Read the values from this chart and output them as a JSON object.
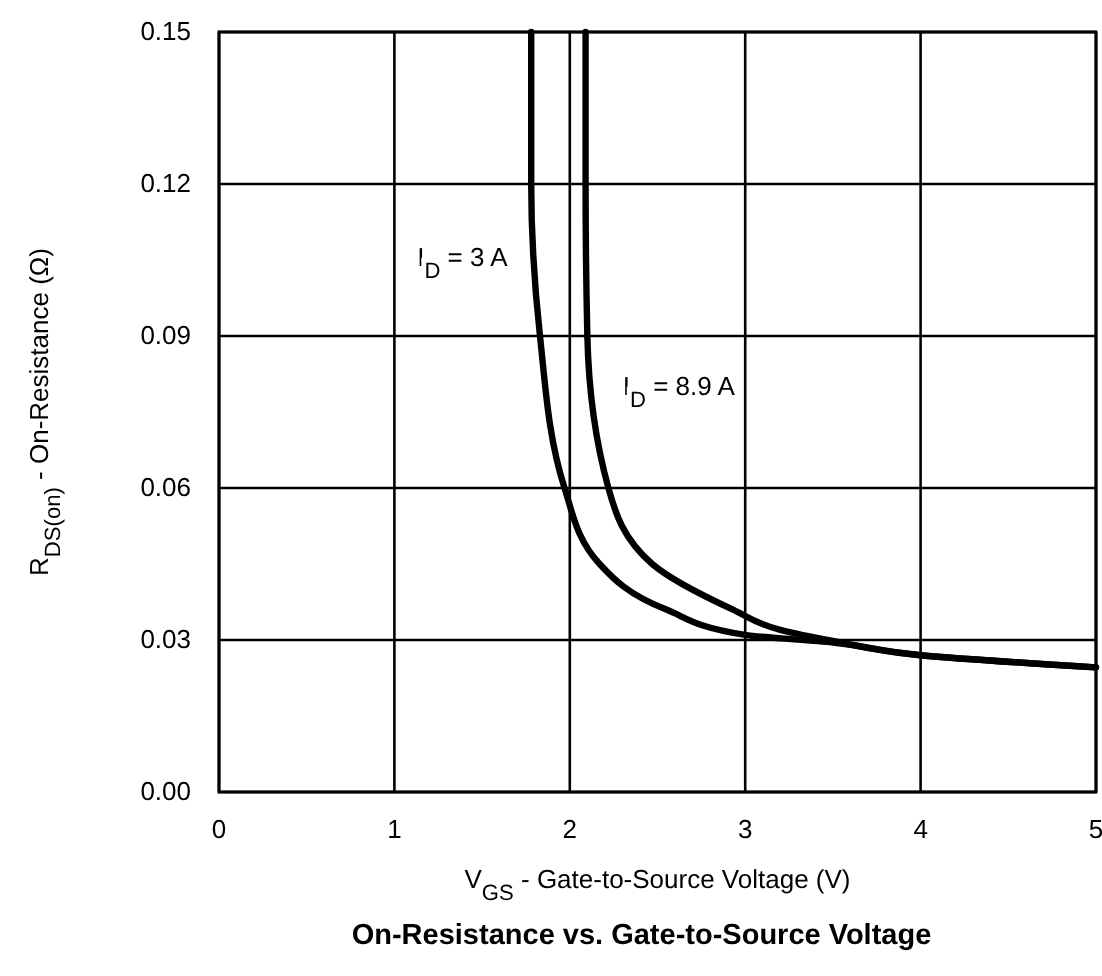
{
  "chart_data": {
    "type": "line",
    "title": "On-Resistance vs. Gate-to-Source Voltage",
    "xlabel": "V$_{GS}$ - Gate-to-Source Voltage (V)",
    "ylabel": "R$_{DS(on)}$ - On-Resistance (Ω)",
    "series": [
      {
        "name": "I$_{D}$ = 3 A",
        "color": "#000000",
        "x": [
          1.78,
          1.78,
          1.83,
          1.97,
          2.17,
          2.55,
          3.0,
          3.5,
          4.0,
          5.0
        ],
        "values": [
          0.15,
          0.12,
          0.09,
          0.06,
          0.045,
          0.036,
          0.031,
          0.0295,
          0.027,
          0.0246
        ]
      },
      {
        "name": "I$_{D}$ = 8.9 A",
        "color": "#000000",
        "x": [
          2.09,
          2.09,
          2.1,
          2.22,
          2.47,
          2.93,
          3.2,
          3.5,
          4.0,
          5.0
        ],
        "values": [
          0.15,
          0.12,
          0.09,
          0.06,
          0.045,
          0.036,
          0.032,
          0.0298,
          0.027,
          0.0246
        ]
      }
    ],
    "xlim": [
      0,
      5
    ],
    "xticks": [
      0,
      1,
      2,
      3,
      4,
      5
    ],
    "ylim": [
      0,
      0.15
    ],
    "yticks": [
      {
        "value": 0,
        "label": "0.00"
      },
      0.03,
      0.06,
      0.09,
      0.12,
      0.15
    ],
    "grid": true,
    "line_style": "solid",
    "marker": "none"
  }
}
